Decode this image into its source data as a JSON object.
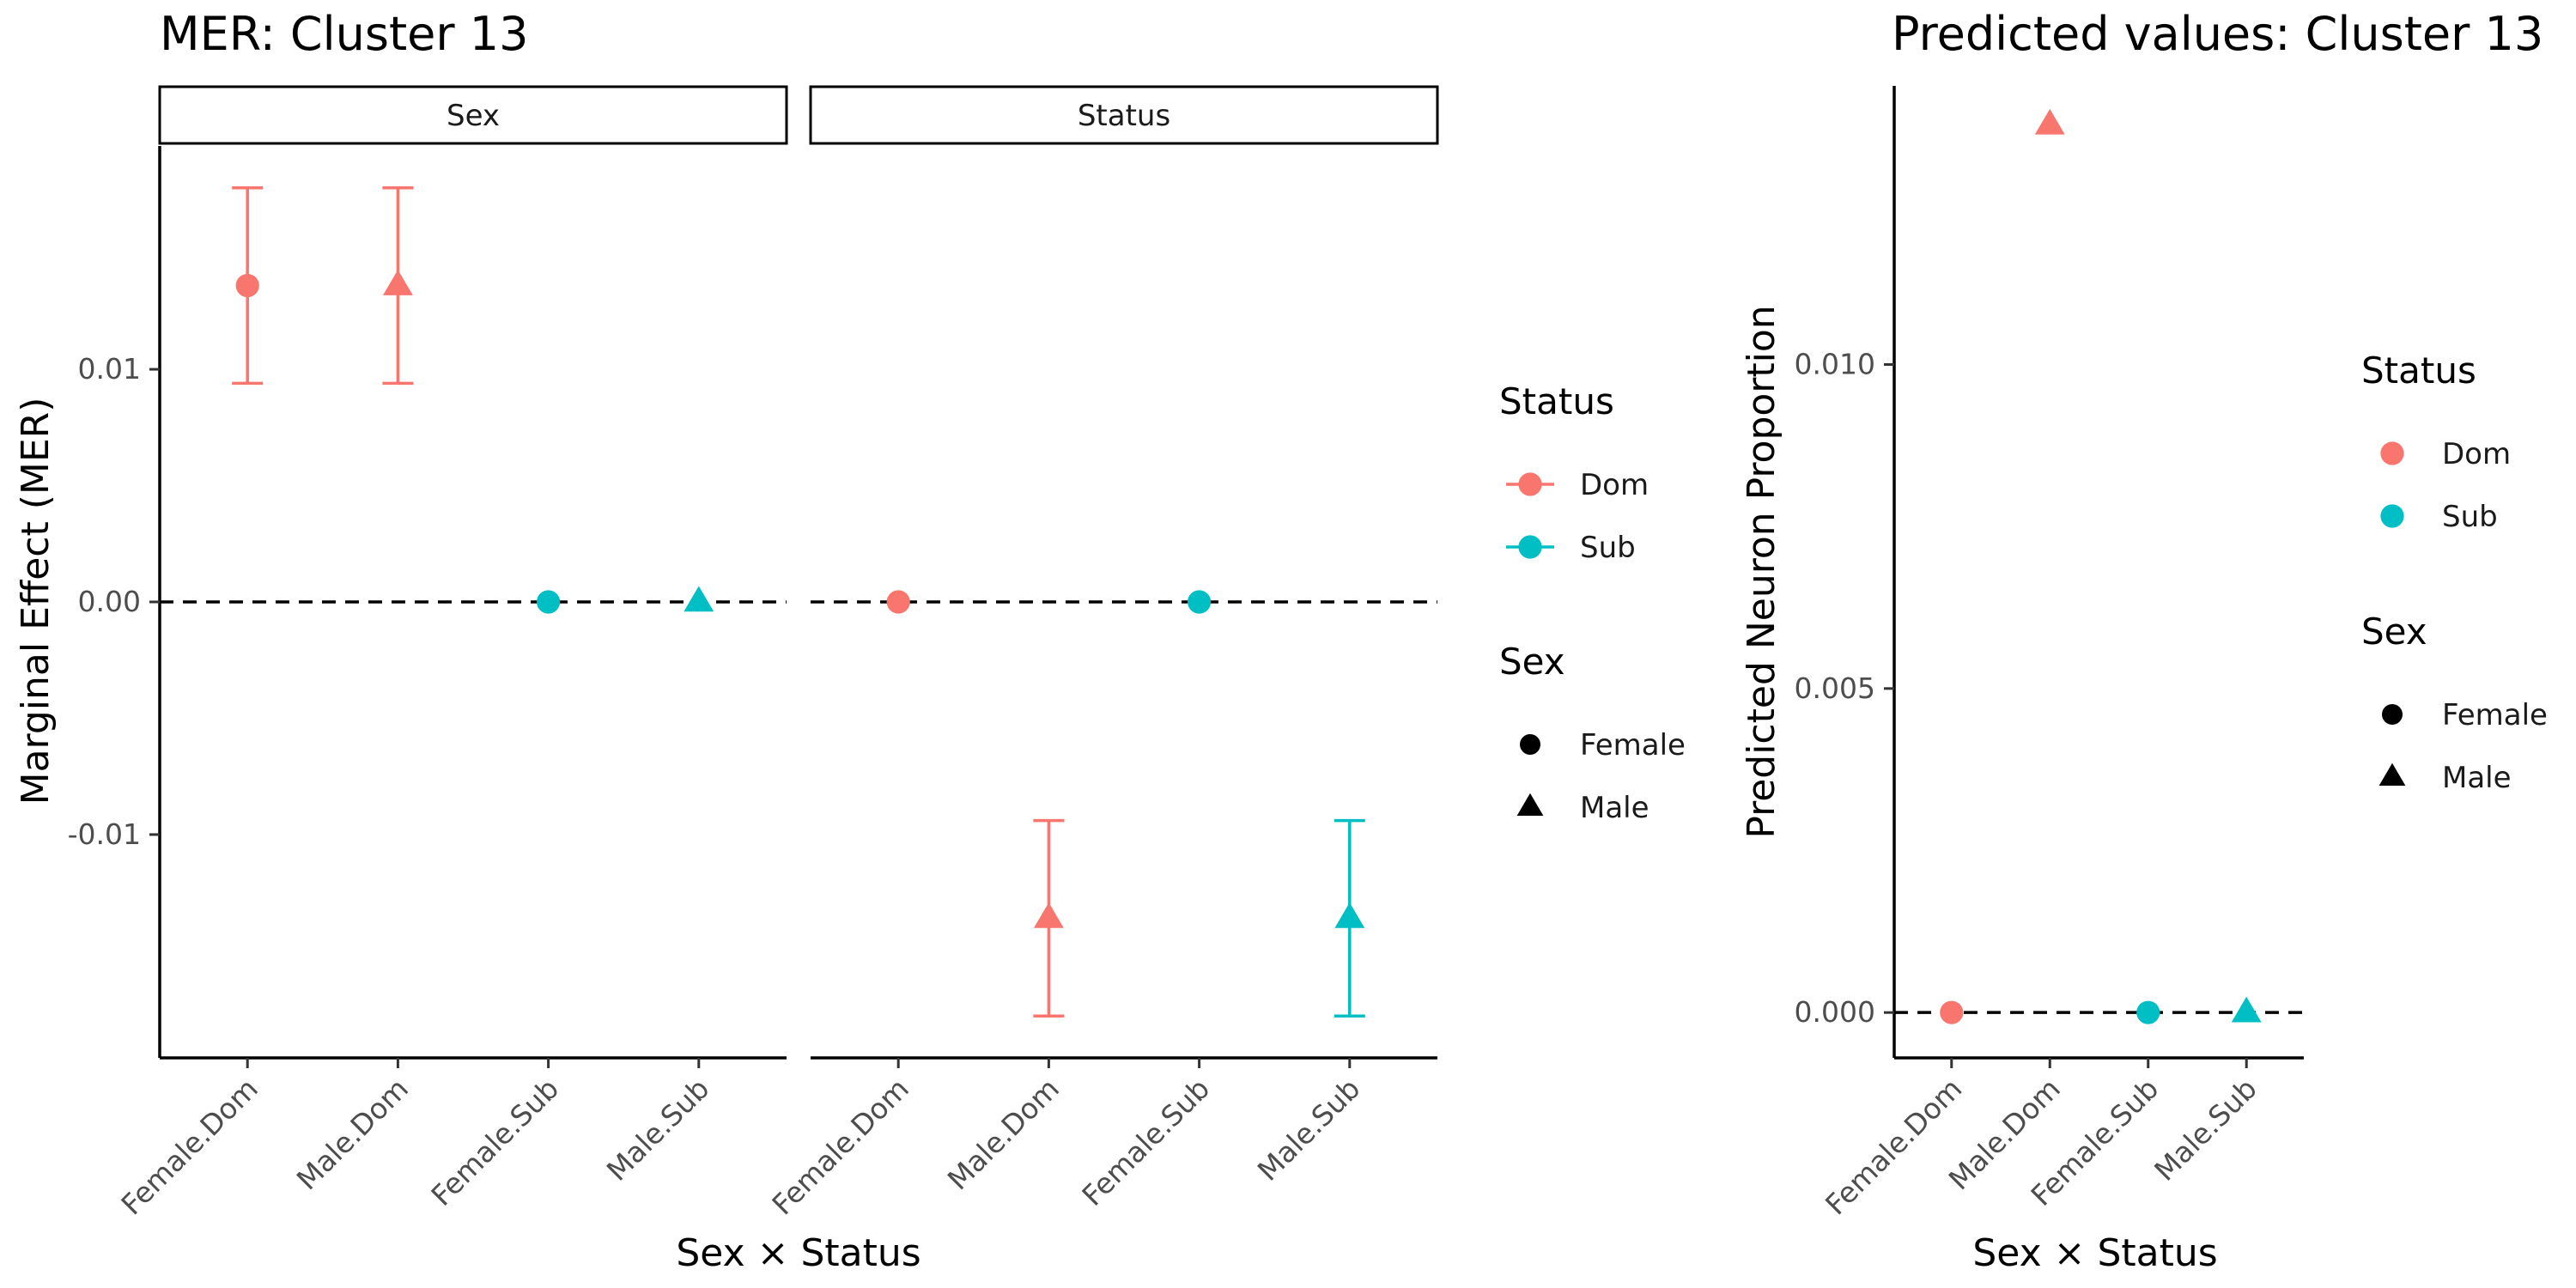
{
  "colors": {
    "Dom": "#F8766D",
    "Sub": "#00BFC4",
    "axis": "#000000",
    "reference": "#000000"
  },
  "chart_data": [
    {
      "type": "scatter",
      "title": "MER: Cluster 13",
      "xlabel": "Sex × Status",
      "ylabel": "Marginal Effect (MER)",
      "ylim": [
        -0.0196,
        0.0196
      ],
      "yticks": [
        {
          "value": 0.01,
          "label": "0.01"
        },
        {
          "value": 0.0,
          "label": "0.00"
        },
        {
          "value": -0.01,
          "label": "-0.01"
        }
      ],
      "reference_line": {
        "y": 0,
        "style": "dashed"
      },
      "grid": false,
      "categories": [
        "Female.Dom",
        "Male.Dom",
        "Female.Sub",
        "Male.Sub"
      ],
      "panels": [
        {
          "strip": "Sex",
          "points": [
            {
              "category": "Female.Dom",
              "sex": "Female",
              "status": "Dom",
              "y": 0.0136,
              "ymin": 0.0094,
              "ymax": 0.0178
            },
            {
              "category": "Male.Dom",
              "sex": "Male",
              "status": "Dom",
              "y": 0.0136,
              "ymin": 0.0094,
              "ymax": 0.0178
            },
            {
              "category": "Female.Sub",
              "sex": "Female",
              "status": "Sub",
              "y": 0.0,
              "ymin": 0.0,
              "ymax": 0.0
            },
            {
              "category": "Male.Sub",
              "sex": "Male",
              "status": "Sub",
              "y": 0.0,
              "ymin": 0.0,
              "ymax": 0.0
            }
          ]
        },
        {
          "strip": "Status",
          "points": [
            {
              "category": "Female.Dom",
              "sex": "Female",
              "status": "Dom",
              "y": 0.0,
              "ymin": 0.0,
              "ymax": 0.0
            },
            {
              "category": "Male.Dom",
              "sex": "Male",
              "status": "Dom",
              "y": -0.0136,
              "ymin": -0.0178,
              "ymax": -0.0094
            },
            {
              "category": "Female.Sub",
              "sex": "Female",
              "status": "Sub",
              "y": 0.0,
              "ymin": 0.0,
              "ymax": 0.0
            },
            {
              "category": "Male.Sub",
              "sex": "Male",
              "status": "Sub",
              "y": -0.0136,
              "ymin": -0.0178,
              "ymax": -0.0094
            }
          ]
        }
      ],
      "legends": [
        {
          "title": "Status",
          "entries": [
            {
              "label": "Dom",
              "key": "Dom",
              "shape": "circle",
              "line": true
            },
            {
              "label": "Sub",
              "key": "Sub",
              "shape": "circle",
              "line": true
            }
          ]
        },
        {
          "title": "Sex",
          "entries": [
            {
              "label": "Female",
              "key": "black",
              "shape": "circle",
              "line": false
            },
            {
              "label": "Male",
              "key": "black",
              "shape": "triangle",
              "line": false
            }
          ]
        }
      ],
      "legend_placement": "right"
    },
    {
      "type": "scatter",
      "title": "Predicted values: Cluster 13",
      "xlabel": "Sex × Status",
      "ylabel": "Predicted Neuron Proportion",
      "ylim": [
        -0.0007,
        0.0143
      ],
      "yticks": [
        {
          "value": 0.01,
          "label": "0.010"
        },
        {
          "value": 0.005,
          "label": "0.005"
        },
        {
          "value": 0.0,
          "label": "0.000"
        }
      ],
      "reference_line": {
        "y": 0,
        "style": "dashed"
      },
      "grid": false,
      "categories": [
        "Female.Dom",
        "Male.Dom",
        "Female.Sub",
        "Male.Sub"
      ],
      "points": [
        {
          "category": "Female.Dom",
          "sex": "Female",
          "status": "Dom",
          "y": 0.0
        },
        {
          "category": "Male.Dom",
          "sex": "Male",
          "status": "Dom",
          "y": 0.0137
        },
        {
          "category": "Female.Sub",
          "sex": "Female",
          "status": "Sub",
          "y": 0.0
        },
        {
          "category": "Male.Sub",
          "sex": "Male",
          "status": "Sub",
          "y": 0.0
        }
      ],
      "legends": [
        {
          "title": "Status",
          "entries": [
            {
              "label": "Dom",
              "key": "Dom",
              "shape": "circle",
              "line": false
            },
            {
              "label": "Sub",
              "key": "Sub",
              "shape": "circle",
              "line": false
            }
          ]
        },
        {
          "title": "Sex",
          "entries": [
            {
              "label": "Female",
              "key": "black",
              "shape": "circle",
              "line": false
            },
            {
              "label": "Male",
              "key": "black",
              "shape": "triangle",
              "line": false
            }
          ]
        }
      ],
      "legend_placement": "right"
    }
  ]
}
